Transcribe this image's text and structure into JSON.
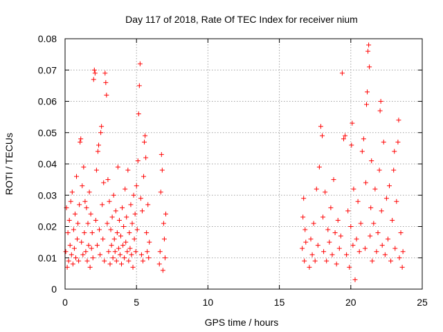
{
  "chart_data": {
    "type": "scatter",
    "title": "Day 117 of 2018, Rate Of TEC Index for receiver nium",
    "xlabel": "GPS time / hours",
    "ylabel": "ROTI / TECUs",
    "xlim": [
      0,
      25
    ],
    "ylim": [
      0,
      0.08
    ],
    "xticks": [
      0,
      5,
      10,
      15,
      20,
      25
    ],
    "xtick_labels": [
      "0",
      "5",
      "10",
      "15",
      "20",
      "25"
    ],
    "yticks": [
      0,
      0.01,
      0.02,
      0.03,
      0.04,
      0.05,
      0.06,
      0.07,
      0.08
    ],
    "ytick_labels": [
      "0",
      "0.01",
      "0.02",
      "0.03",
      "0.04",
      "0.05",
      "0.06",
      "0.07",
      "0.08"
    ],
    "grid": true,
    "marker": "+",
    "series": [
      {
        "color": "#ff0000",
        "points": [
          [
            0.05,
            0.012
          ],
          [
            0.1,
            0.026
          ],
          [
            0.15,
            0.007
          ],
          [
            0.2,
            0.018
          ],
          [
            0.25,
            0.009
          ],
          [
            0.3,
            0.022
          ],
          [
            0.35,
            0.014
          ],
          [
            0.4,
            0.028
          ],
          [
            0.45,
            0.011
          ],
          [
            0.5,
            0.031
          ],
          [
            0.55,
            0.008
          ],
          [
            0.6,
            0.019
          ],
          [
            0.65,
            0.013
          ],
          [
            0.7,
            0.024
          ],
          [
            0.75,
            0.01
          ],
          [
            0.8,
            0.036
          ],
          [
            0.85,
            0.016
          ],
          [
            0.9,
            0.021
          ],
          [
            0.95,
            0.009
          ],
          [
            1.0,
            0.027
          ],
          [
            1.05,
            0.047
          ],
          [
            1.1,
            0.048
          ],
          [
            1.15,
            0.015
          ],
          [
            1.2,
            0.033
          ],
          [
            1.25,
            0.011
          ],
          [
            1.3,
            0.039
          ],
          [
            1.35,
            0.018
          ],
          [
            1.4,
            0.028
          ],
          [
            1.45,
            0.012
          ],
          [
            1.5,
            0.026
          ],
          [
            1.55,
            0.009
          ],
          [
            1.6,
            0.021
          ],
          [
            1.65,
            0.014
          ],
          [
            1.7,
            0.031
          ],
          [
            1.75,
            0.007
          ],
          [
            1.8,
            0.024
          ],
          [
            1.85,
            0.013
          ],
          [
            1.9,
            0.018
          ],
          [
            1.95,
            0.01
          ],
          [
            2.0,
            0.067
          ],
          [
            2.05,
            0.07
          ],
          [
            2.1,
            0.069
          ],
          [
            2.15,
            0.022
          ],
          [
            2.2,
            0.038
          ],
          [
            2.25,
            0.014
          ],
          [
            2.3,
            0.044
          ],
          [
            2.35,
            0.046
          ],
          [
            2.4,
            0.019
          ],
          [
            2.45,
            0.011
          ],
          [
            2.5,
            0.05
          ],
          [
            2.55,
            0.052
          ],
          [
            2.6,
            0.027
          ],
          [
            2.65,
            0.016
          ],
          [
            2.7,
            0.034
          ],
          [
            2.75,
            0.009
          ],
          [
            2.8,
            0.069
          ],
          [
            2.85,
            0.066
          ],
          [
            2.9,
            0.062
          ],
          [
            2.95,
            0.021
          ],
          [
            3.0,
            0.035
          ],
          [
            3.05,
            0.012
          ],
          [
            3.1,
            0.028
          ],
          [
            3.15,
            0.008
          ],
          [
            3.2,
            0.019
          ],
          [
            3.25,
            0.014
          ],
          [
            3.3,
            0.023
          ],
          [
            3.35,
            0.01
          ],
          [
            3.4,
            0.03
          ],
          [
            3.45,
            0.016
          ],
          [
            3.5,
            0.012
          ],
          [
            3.55,
            0.025
          ],
          [
            3.6,
            0.009
          ],
          [
            3.65,
            0.018
          ],
          [
            3.7,
            0.039
          ],
          [
            3.75,
            0.013
          ],
          [
            3.8,
            0.022
          ],
          [
            3.85,
            0.011
          ],
          [
            3.9,
            0.017
          ],
          [
            3.95,
            0.008
          ],
          [
            4.0,
            0.026
          ],
          [
            4.05,
            0.014
          ],
          [
            4.1,
            0.02
          ],
          [
            4.15,
            0.01
          ],
          [
            4.2,
            0.032
          ],
          [
            4.25,
            0.015
          ],
          [
            4.3,
            0.023
          ],
          [
            4.35,
            0.012
          ],
          [
            4.4,
            0.038
          ],
          [
            4.45,
            0.009
          ],
          [
            4.5,
            0.018
          ],
          [
            4.55,
            0.013
          ],
          [
            4.6,
            0.027
          ],
          [
            4.65,
            0.011
          ],
          [
            4.7,
            0.021
          ],
          [
            4.75,
            0.007
          ],
          [
            4.8,
            0.03
          ],
          [
            4.85,
            0.016
          ],
          [
            4.9,
            0.024
          ],
          [
            4.95,
            0.012
          ],
          [
            5.0,
            0.033
          ],
          [
            5.05,
            0.019
          ],
          [
            5.1,
            0.041
          ],
          [
            5.15,
            0.056
          ],
          [
            5.2,
            0.065
          ],
          [
            5.25,
            0.072
          ],
          [
            5.3,
            0.029
          ],
          [
            5.35,
            0.011
          ],
          [
            5.4,
            0.025
          ],
          [
            5.45,
            0.009
          ],
          [
            5.5,
            0.036
          ],
          [
            5.55,
            0.047
          ],
          [
            5.6,
            0.049
          ],
          [
            5.65,
            0.042
          ],
          [
            5.7,
            0.018
          ],
          [
            5.75,
            0.012
          ],
          [
            5.8,
            0.027
          ],
          [
            5.85,
            0.01
          ],
          [
            5.9,
            0.015
          ],
          [
            6.6,
            0.008
          ],
          [
            6.65,
            0.012
          ],
          [
            6.7,
            0.031
          ],
          [
            6.75,
            0.043
          ],
          [
            6.8,
            0.038
          ],
          [
            6.85,
            0.006
          ],
          [
            6.9,
            0.021
          ],
          [
            6.95,
            0.016
          ],
          [
            7.0,
            0.01
          ],
          [
            7.05,
            0.024
          ],
          [
            16.6,
            0.013
          ],
          [
            16.65,
            0.023
          ],
          [
            16.7,
            0.029
          ],
          [
            16.75,
            0.009
          ],
          [
            16.8,
            0.019
          ],
          [
            16.85,
            0.015
          ],
          [
            17.1,
            0.007
          ],
          [
            17.2,
            0.016
          ],
          [
            17.3,
            0.011
          ],
          [
            17.4,
            0.021
          ],
          [
            17.5,
            0.009
          ],
          [
            17.6,
            0.032
          ],
          [
            17.7,
            0.014
          ],
          [
            17.8,
            0.039
          ],
          [
            17.9,
            0.052
          ],
          [
            18.0,
            0.049
          ],
          [
            18.05,
            0.023
          ],
          [
            18.1,
            0.012
          ],
          [
            18.2,
            0.031
          ],
          [
            18.3,
            0.009
          ],
          [
            18.4,
            0.019
          ],
          [
            18.5,
            0.015
          ],
          [
            18.6,
            0.026
          ],
          [
            18.7,
            0.011
          ],
          [
            18.8,
            0.035
          ],
          [
            18.9,
            0.018
          ],
          [
            19.0,
            0.008
          ],
          [
            19.1,
            0.022
          ],
          [
            19.2,
            0.013
          ],
          [
            19.3,
            0.017
          ],
          [
            19.4,
            0.069
          ],
          [
            19.5,
            0.048
          ],
          [
            19.6,
            0.049
          ],
          [
            19.7,
            0.011
          ],
          [
            19.8,
            0.025
          ],
          [
            19.9,
            0.007
          ],
          [
            20.0,
            0.02
          ],
          [
            20.05,
            0.046
          ],
          [
            20.1,
            0.053
          ],
          [
            20.15,
            0.014
          ],
          [
            20.2,
            0.032
          ],
          [
            20.3,
            0.003
          ],
          [
            20.4,
            0.016
          ],
          [
            20.5,
            0.028
          ],
          [
            20.6,
            0.012
          ],
          [
            20.7,
            0.021
          ],
          [
            20.8,
            0.044
          ],
          [
            20.9,
            0.048
          ],
          [
            21.0,
            0.013
          ],
          [
            21.05,
            0.034
          ],
          [
            21.1,
            0.059
          ],
          [
            21.15,
            0.063
          ],
          [
            21.2,
            0.076
          ],
          [
            21.25,
            0.078
          ],
          [
            21.3,
            0.071
          ],
          [
            21.35,
            0.017
          ],
          [
            21.4,
            0.026
          ],
          [
            21.45,
            0.041
          ],
          [
            21.5,
            0.009
          ],
          [
            21.6,
            0.021
          ],
          [
            21.7,
            0.032
          ],
          [
            21.8,
            0.012
          ],
          [
            21.9,
            0.018
          ],
          [
            22.0,
            0.038
          ],
          [
            22.05,
            0.057
          ],
          [
            22.1,
            0.06
          ],
          [
            22.15,
            0.025
          ],
          [
            22.2,
            0.014
          ],
          [
            22.3,
            0.047
          ],
          [
            22.4,
            0.011
          ],
          [
            22.5,
            0.029
          ],
          [
            22.6,
            0.016
          ],
          [
            22.7,
            0.033
          ],
          [
            22.8,
            0.009
          ],
          [
            22.9,
            0.022
          ],
          [
            23.0,
            0.038
          ],
          [
            23.05,
            0.044
          ],
          [
            23.1,
            0.013
          ],
          [
            23.2,
            0.028
          ],
          [
            23.3,
            0.047
          ],
          [
            23.35,
            0.054
          ],
          [
            23.4,
            0.01
          ],
          [
            23.5,
            0.018
          ],
          [
            23.6,
            0.007
          ],
          [
            23.65,
            0.012
          ]
        ]
      }
    ]
  }
}
